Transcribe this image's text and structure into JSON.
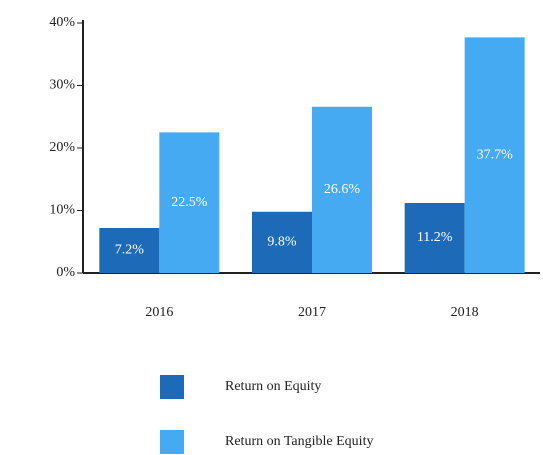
{
  "chart_data": {
    "type": "bar",
    "categories": [
      "2016",
      "2017",
      "2018"
    ],
    "series": [
      {
        "name": "Return on Equity",
        "color": "#1d6bb8",
        "values": [
          7.2,
          9.8,
          11.2
        ],
        "value_labels": [
          "7.2%",
          "9.8%",
          "11.2%"
        ]
      },
      {
        "name": "Return on Tangible Equity",
        "color": "#45aaf2",
        "values": [
          22.5,
          26.6,
          37.7
        ],
        "value_labels": [
          "22.5%",
          "26.6%",
          "37.7%"
        ]
      }
    ],
    "ylim": [
      0,
      40
    ],
    "yticks": [
      {
        "value": 0,
        "label": "0%"
      },
      {
        "value": 10,
        "label": "10%"
      },
      {
        "value": 20,
        "label": "20%"
      },
      {
        "value": 30,
        "label": "30%"
      },
      {
        "value": 40,
        "label": "40%"
      }
    ],
    "legend": "bottom"
  }
}
